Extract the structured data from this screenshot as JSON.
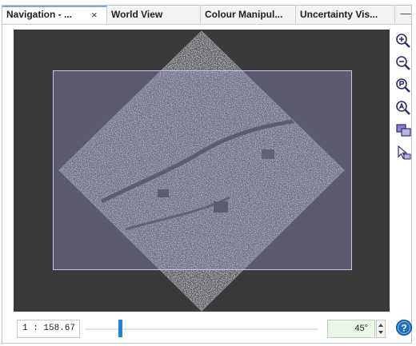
{
  "tabs": [
    {
      "label": "Navigation - ...",
      "active": true
    },
    {
      "label": "World View",
      "active": false
    },
    {
      "label": "Colour Manipul...",
      "active": false
    },
    {
      "label": "Uncertainty Vis...",
      "active": false
    }
  ],
  "tab_close_glyph": "×",
  "minimize_glyph": "—",
  "tools": [
    "zoom-in-icon",
    "zoom-out-icon",
    "zoom-pixel-icon",
    "zoom-all-icon",
    "sync-views-icon",
    "sync-cursor-icon"
  ],
  "status": {
    "scale": "1 : 158.67",
    "zoom_slider_fraction": 0.15,
    "rotation": "45°"
  },
  "colors": {
    "viewport_bg": "#3a3a3a",
    "view_rect_border": "#c6c8f2",
    "slider_thumb": "#1a86d8",
    "help_icon": "#1f6fb8",
    "angle_field_bg": "#e9f7e5"
  }
}
